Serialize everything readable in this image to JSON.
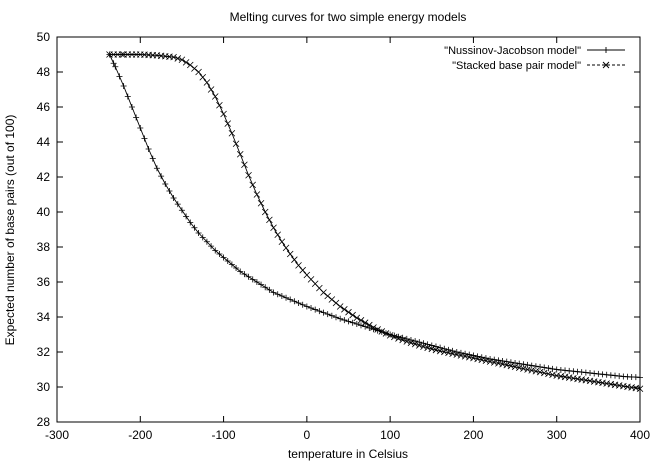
{
  "chart_data": {
    "type": "line",
    "title": "Melting curves for two simple energy models",
    "xlabel": "temperature in Celsius",
    "ylabel": "Expected number of base pairs (out of 100)",
    "xlim": [
      -300,
      400
    ],
    "ylim": [
      28,
      50
    ],
    "xticks": [
      -300,
      -200,
      -100,
      0,
      100,
      200,
      300,
      400
    ],
    "yticks": [
      28,
      30,
      32,
      34,
      36,
      38,
      40,
      42,
      44,
      46,
      48,
      50
    ],
    "legend_position": "top-right",
    "series": [
      {
        "name": "\"Nussinov-Jacobson model\"",
        "marker": "plus",
        "line_style": "solid",
        "x": [
          -237,
          -230,
          -220,
          -210,
          -200,
          -190,
          -180,
          -170,
          -160,
          -150,
          -140,
          -130,
          -120,
          -110,
          -100,
          -90,
          -80,
          -70,
          -60,
          -50,
          -40,
          -30,
          -20,
          -10,
          0,
          20,
          40,
          60,
          80,
          100,
          120,
          140,
          160,
          180,
          200,
          220,
          240,
          260,
          280,
          300,
          320,
          340,
          360,
          380,
          400
        ],
        "values": [
          49.0,
          48.3,
          47.2,
          46.0,
          44.8,
          43.6,
          42.5,
          41.6,
          40.8,
          40.1,
          39.4,
          38.8,
          38.3,
          37.8,
          37.4,
          37.0,
          36.6,
          36.3,
          36.0,
          35.7,
          35.4,
          35.2,
          35.0,
          34.8,
          34.6,
          34.25,
          33.9,
          33.6,
          33.3,
          33.0,
          32.75,
          32.5,
          32.25,
          32.0,
          31.8,
          31.6,
          31.45,
          31.3,
          31.15,
          31.0,
          30.9,
          30.8,
          30.7,
          30.6,
          30.55
        ]
      },
      {
        "name": "\"Stacked base pair model\"",
        "marker": "cross",
        "line_style": "dashed",
        "x": [
          -237,
          -220,
          -200,
          -180,
          -160,
          -150,
          -140,
          -130,
          -120,
          -110,
          -100,
          -90,
          -80,
          -70,
          -60,
          -50,
          -40,
          -30,
          -20,
          -10,
          0,
          20,
          40,
          60,
          80,
          100,
          120,
          140,
          160,
          180,
          200,
          220,
          240,
          260,
          280,
          300,
          320,
          340,
          360,
          380,
          400
        ],
        "values": [
          49.0,
          49.0,
          49.0,
          48.95,
          48.85,
          48.7,
          48.4,
          48.0,
          47.4,
          46.6,
          45.6,
          44.5,
          43.3,
          42.1,
          41.0,
          40.0,
          39.1,
          38.3,
          37.6,
          36.95,
          36.4,
          35.4,
          34.6,
          33.95,
          33.4,
          32.95,
          32.6,
          32.3,
          32.05,
          31.85,
          31.65,
          31.45,
          31.25,
          31.05,
          30.85,
          30.65,
          30.5,
          30.35,
          30.2,
          30.05,
          29.9
        ]
      }
    ]
  }
}
